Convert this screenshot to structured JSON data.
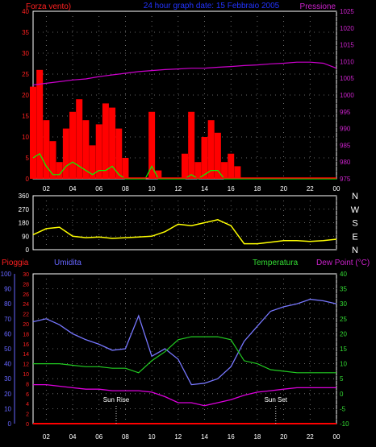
{
  "header": {
    "left_title": "Forza vento)",
    "center_title": "24 hour graph date: 15 Febbraio 2005",
    "right_title": "Pressione"
  },
  "x_ticks": [
    "02",
    "04",
    "06",
    "08",
    "10",
    "12",
    "14",
    "16",
    "18",
    "20",
    "22",
    "00"
  ],
  "compass": [
    "N",
    "W",
    "S",
    "E",
    "N"
  ],
  "labels_bottom": {
    "pioggia": "Pioggia",
    "umidita": "Umidita",
    "temperatura": "Temperatura",
    "dew_point": "Dew Point (°C)",
    "sun_rise": "Sun Rise",
    "sun_set": "Sun Set"
  },
  "colors": {
    "wind": "#ff0000",
    "gust": "#00ff00",
    "pressure": "#cc00cc",
    "direction": "#ffff00",
    "humidity": "#7777ff",
    "temperature": "#22cc22",
    "dewpoint": "#dd00dd",
    "rain": "#ff0000",
    "axis_red": "#ff2020",
    "axis_blue": "#6666ff",
    "axis_green": "#33dd33",
    "axis_purple": "#cc22cc"
  },
  "chart_data": [
    {
      "type": "area",
      "title": "24 hour graph date: 15 Febbraio 2005",
      "x_range": [
        1,
        24
      ],
      "y_left": {
        "label": "Forza vento)",
        "range": [
          0,
          40
        ],
        "ticks": [
          0,
          5,
          10,
          15,
          20,
          25,
          30,
          35,
          40
        ]
      },
      "y_right": {
        "label": "Pressione",
        "range": [
          975,
          1025
        ],
        "ticks": [
          975,
          980,
          985,
          990,
          995,
          1000,
          1005,
          1010,
          1015,
          1020,
          1025
        ]
      },
      "series": [
        {
          "name": "Pressione",
          "axis": "right",
          "x": [
            1,
            2,
            3,
            4,
            5,
            6,
            7,
            8,
            9,
            10,
            11,
            12,
            13,
            14,
            15,
            16,
            17,
            18,
            19,
            20,
            21,
            22,
            23,
            24
          ],
          "values": [
            1003,
            1003.5,
            1004,
            1004.5,
            1004.8,
            1005.5,
            1006,
            1006.5,
            1007,
            1007.3,
            1007.6,
            1007.8,
            1008,
            1008,
            1008.3,
            1008.5,
            1008.8,
            1009,
            1009.3,
            1009.5,
            1009.8,
            1009.8,
            1009.5,
            1008
          ]
        },
        {
          "x": [
            1,
            1.5,
            2,
            2.5,
            3,
            3.5,
            4,
            4.5,
            5,
            5.5,
            6,
            6.5,
            7,
            7.5,
            8,
            8.5,
            9,
            9.5,
            10,
            10.5,
            11,
            11.5,
            12,
            12.5,
            13,
            13.5,
            14,
            14.5,
            15,
            15.5,
            16,
            16.5,
            17,
            18,
            19,
            20,
            21,
            22,
            23,
            24
          ],
          "values": [
            22,
            26,
            14,
            9,
            4,
            12,
            16,
            19,
            14,
            8,
            13,
            18,
            17,
            12,
            5,
            0,
            0,
            0,
            16,
            2,
            0,
            0,
            0,
            6,
            16,
            4,
            10,
            14,
            11,
            4,
            6,
            3,
            0,
            0,
            0,
            0,
            0,
            0,
            0,
            0
          ]
        },
        {
          "x": [
            1,
            1.5,
            2,
            2.5,
            3,
            3.5,
            4,
            4.5,
            5,
            5.5,
            6,
            6.5,
            7,
            7.5,
            8,
            8.5,
            9,
            9.5,
            10,
            10.5,
            11,
            11.5,
            12,
            12.5,
            13,
            13.5,
            14,
            14.5,
            15,
            15.5,
            16,
            16.5,
            17,
            18,
            19,
            20,
            21,
            22,
            23,
            24
          ],
          "values": [
            5,
            6,
            3,
            1,
            1,
            3,
            4,
            3,
            2,
            1,
            2,
            2,
            3,
            1,
            0,
            0,
            0,
            0,
            3,
            0,
            0,
            0,
            0,
            0,
            1,
            0,
            1,
            2,
            2,
            0,
            0,
            0,
            0,
            0,
            0,
            0,
            0,
            0,
            0,
            0
          ]
        }
      ]
    },
    {
      "type": "line",
      "x_range": [
        1,
        24
      ],
      "y_left": {
        "range": [
          0,
          360
        ],
        "ticks": [
          0,
          90,
          180,
          270,
          360
        ]
      },
      "series": [
        {
          "x": [
            1,
            2,
            3,
            4,
            5,
            6,
            7,
            8,
            9,
            10,
            11,
            12,
            13,
            14,
            15,
            16,
            17,
            18,
            19,
            20,
            21,
            22,
            23,
            24
          ],
          "values": [
            100,
            140,
            150,
            90,
            80,
            85,
            75,
            80,
            85,
            90,
            120,
            170,
            160,
            180,
            200,
            160,
            40,
            40,
            50,
            60,
            60,
            55,
            60,
            70
          ]
        }
      ]
    },
    {
      "type": "line",
      "x_range": [
        1,
        24
      ],
      "y_left_pioggia": {
        "label": "Pioggia",
        "range": [
          0,
          30
        ],
        "ticks": [
          0,
          2,
          4,
          6,
          8,
          10,
          12,
          14,
          16,
          18,
          20,
          22,
          24,
          26,
          28,
          30
        ]
      },
      "y_left_umidita": {
        "label": "Umidita",
        "range": [
          0,
          100
        ],
        "ticks": [
          0,
          10,
          20,
          30,
          40,
          50,
          60,
          70,
          80,
          90,
          100
        ]
      },
      "y_right": {
        "label": "Temperatura / Dew Point (°C)",
        "range": [
          -10,
          40
        ],
        "ticks": [
          -10,
          -5,
          0,
          5,
          10,
          15,
          20,
          25,
          30,
          35,
          40
        ]
      },
      "annotations": [
        {
          "text": "Sun Rise",
          "x": 7.3
        },
        {
          "text": "Sun Set",
          "x": 19.4
        }
      ],
      "series": [
        {
          "name": "Umidita",
          "axis": "umidita",
          "x": [
            1,
            2,
            3,
            4,
            5,
            6,
            7,
            8,
            9,
            10,
            11,
            12,
            13,
            14,
            15,
            16,
            17,
            18,
            19,
            20,
            21,
            22,
            23,
            24
          ],
          "values": [
            68,
            70,
            66,
            60,
            56,
            53,
            49,
            50,
            72,
            45,
            50,
            43,
            26,
            27,
            30,
            38,
            55,
            65,
            75,
            78,
            80,
            83,
            82,
            80
          ]
        },
        {
          "name": "Temperatura",
          "axis": "right",
          "x": [
            1,
            2,
            3,
            4,
            5,
            6,
            7,
            8,
            9,
            10,
            11,
            12,
            13,
            14,
            15,
            16,
            17,
            18,
            19,
            20,
            21,
            22,
            23,
            24
          ],
          "values": [
            10,
            10,
            10,
            9.5,
            9,
            9,
            8.5,
            8.5,
            7,
            11,
            14,
            18,
            19,
            19,
            19,
            18,
            11,
            10,
            8,
            7.5,
            7,
            7,
            7,
            7
          ]
        },
        {
          "name": "Dew Point",
          "axis": "right",
          "x": [
            1,
            2,
            3,
            4,
            5,
            6,
            7,
            8,
            9,
            10,
            11,
            12,
            13,
            14,
            15,
            16,
            17,
            18,
            19,
            20,
            21,
            22,
            23,
            24
          ],
          "values": [
            3,
            3,
            2.5,
            2,
            1.5,
            1.5,
            1,
            1,
            1,
            0.5,
            -1,
            -3,
            -3,
            -4,
            -3,
            -2,
            -0.5,
            0.5,
            1,
            1.5,
            2,
            2,
            2,
            2
          ]
        },
        {
          "name": "Pioggia",
          "axis": "pioggia",
          "x": [
            1,
            24
          ],
          "values": [
            0,
            0
          ]
        }
      ]
    }
  ]
}
